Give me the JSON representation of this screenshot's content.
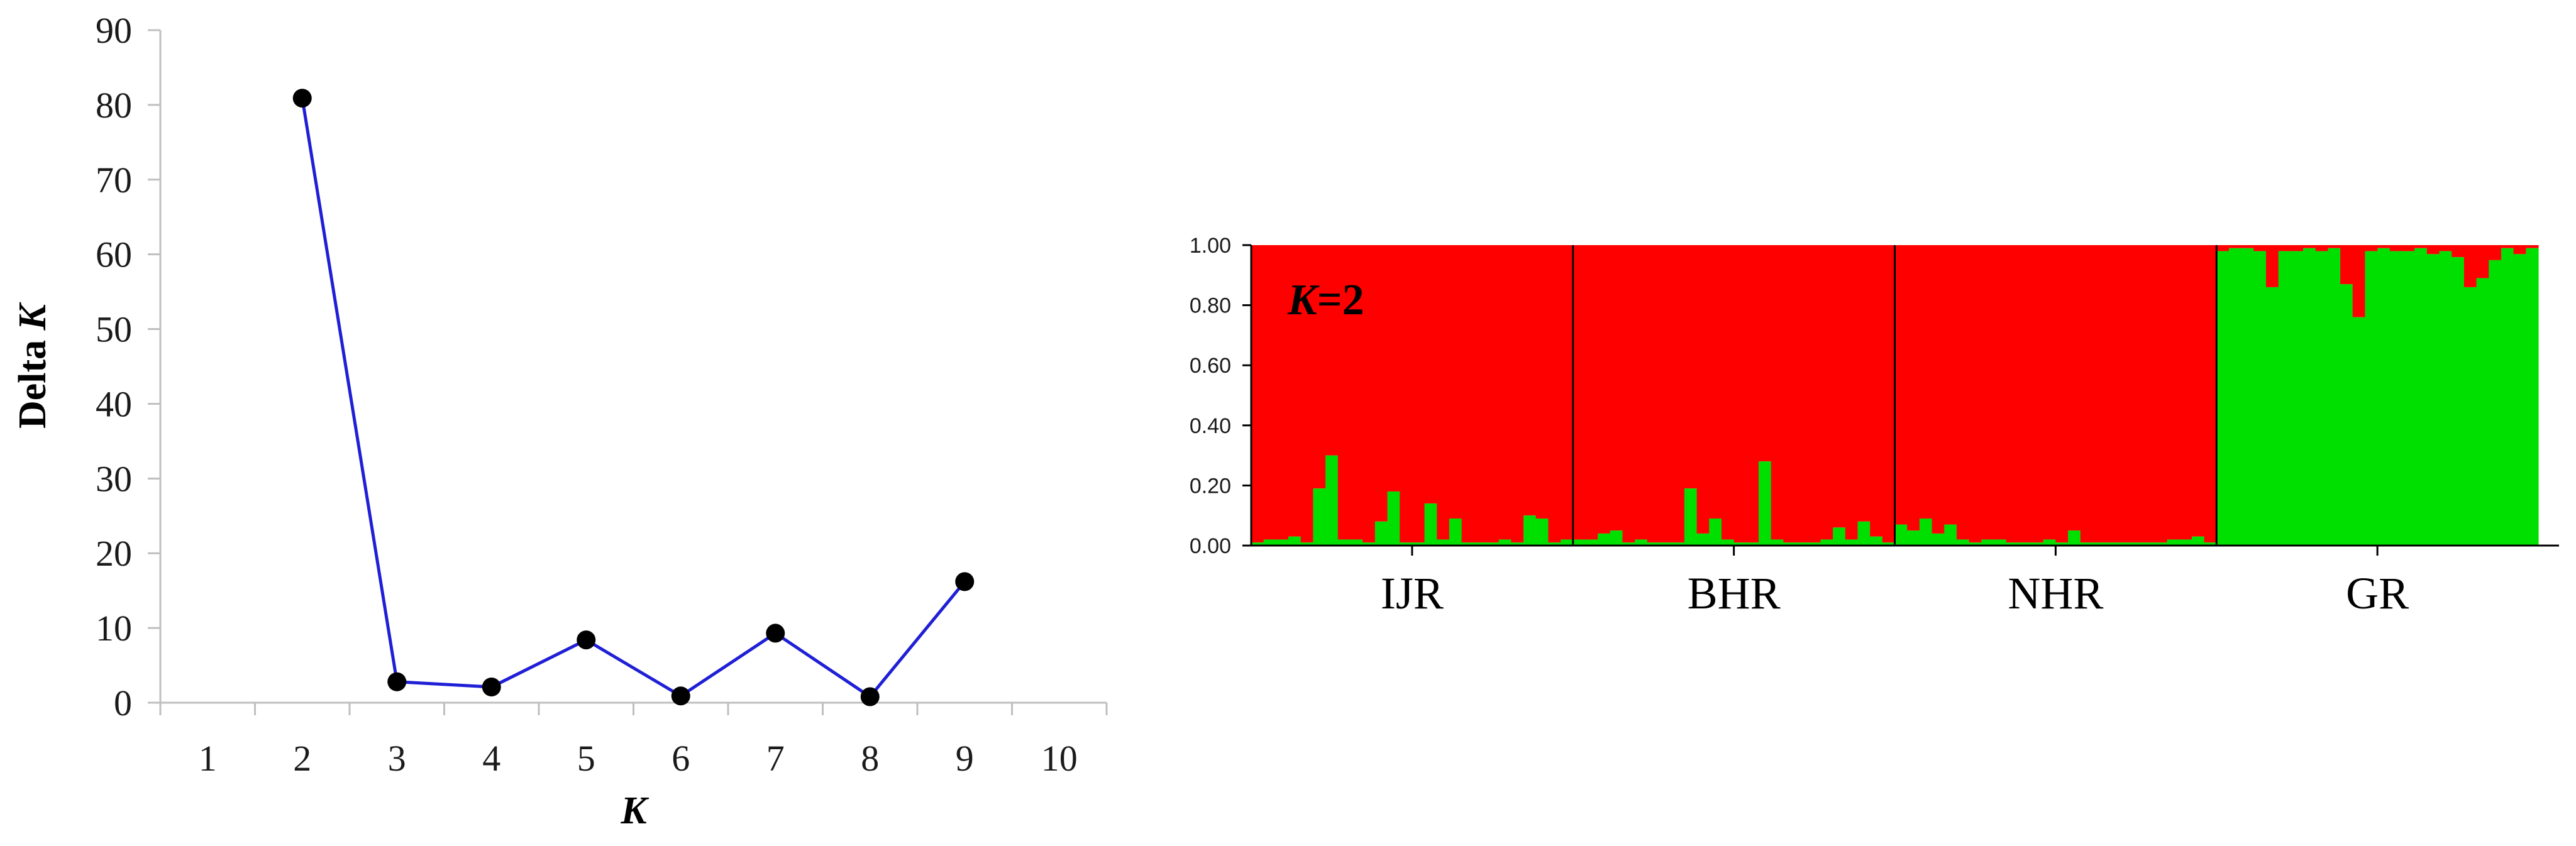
{
  "chart_data": [
    {
      "type": "line",
      "title": "",
      "xlabel_prefix": "",
      "xlabel_italic": "K",
      "ylabel_prefix": "Delta ",
      "ylabel_italic": "K",
      "x_ticks": [
        "1",
        "2",
        "3",
        "4",
        "5",
        "6",
        "7",
        "8",
        "9",
        "10"
      ],
      "xlim": [
        0.5,
        10.5
      ],
      "ylim": [
        0,
        90
      ],
      "y_ticks": [
        "0",
        "10",
        "20",
        "30",
        "40",
        "50",
        "60",
        "70",
        "80",
        "90"
      ],
      "grid": false,
      "series": [
        {
          "x": [
            2,
            3,
            4,
            5,
            6,
            7,
            8,
            9
          ],
          "y": [
            80.9,
            2.8,
            2.1,
            8.4,
            0.9,
            9.3,
            0.8,
            16.2
          ]
        }
      ],
      "colors": {
        "line": "#1f1fd6",
        "marker": "#000000"
      }
    },
    {
      "type": "bar",
      "subtype": "stacked-structure",
      "annotation_italic": "K",
      "annotation_rest": "=2",
      "ylim": [
        0,
        1
      ],
      "y_ticks": [
        "0.00",
        "0.20",
        "0.40",
        "0.60",
        "0.80",
        "1.00"
      ],
      "populations": [
        "IJR",
        "BHR",
        "NHR",
        "GR"
      ],
      "colors": {
        "cluster_1": "#ff0000",
        "cluster_2": "#00e000"
      },
      "cluster_2_values": [
        [
          0.01,
          0.02,
          0.02,
          0.03,
          0.01,
          0.19,
          0.3,
          0.02,
          0.02,
          0.01,
          0.08,
          0.18,
          0.01,
          0.01,
          0.14,
          0.02,
          0.09,
          0.01,
          0.01,
          0.01,
          0.02,
          0.01,
          0.1,
          0.09,
          0.01,
          0.02
        ],
        [
          0.02,
          0.02,
          0.04,
          0.05,
          0.01,
          0.02,
          0.01,
          0.01,
          0.01,
          0.19,
          0.04,
          0.09,
          0.02,
          0.01,
          0.01,
          0.28,
          0.02,
          0.01,
          0.01,
          0.01,
          0.02,
          0.06,
          0.02,
          0.08,
          0.03,
          0.01
        ],
        [
          0.07,
          0.05,
          0.09,
          0.04,
          0.07,
          0.02,
          0.01,
          0.02,
          0.02,
          0.01,
          0.01,
          0.01,
          0.02,
          0.01,
          0.05,
          0.01,
          0.01,
          0.01,
          0.01,
          0.01,
          0.01,
          0.01,
          0.02,
          0.02,
          0.03,
          0.01
        ],
        [
          0.98,
          0.99,
          0.99,
          0.98,
          0.86,
          0.98,
          0.98,
          0.99,
          0.98,
          0.99,
          0.87,
          0.76,
          0.98,
          0.99,
          0.98,
          0.98,
          0.99,
          0.97,
          0.98,
          0.96,
          0.86,
          0.89,
          0.95,
          0.99,
          0.97,
          0.99
        ]
      ]
    }
  ]
}
